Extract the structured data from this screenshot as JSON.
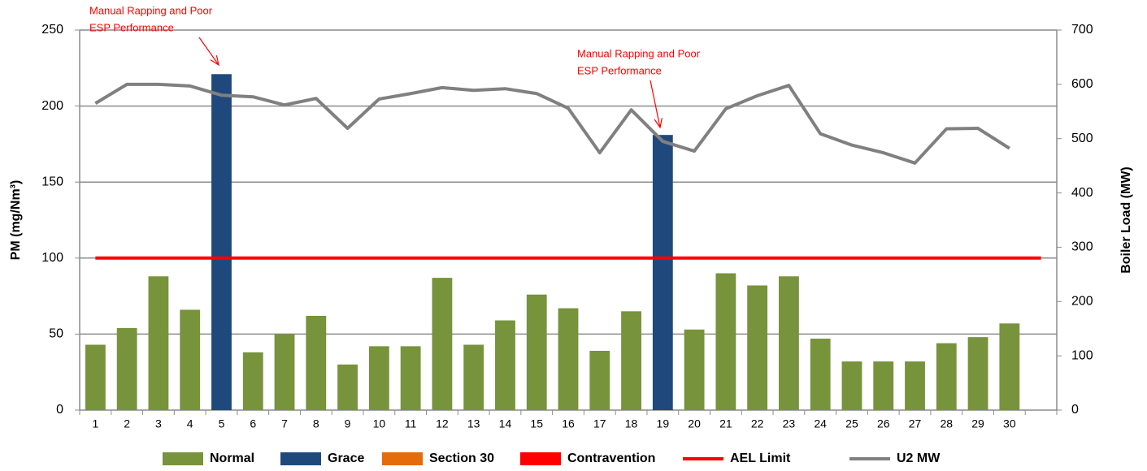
{
  "chart_data": {
    "type": "bar",
    "y_label": "PM (mg/Nm³)",
    "y2_label": "Boiler Load (MW)",
    "categories": [
      "1",
      "2",
      "3",
      "4",
      "5",
      "6",
      "7",
      "8",
      "9",
      "10",
      "11",
      "12",
      "13",
      "14",
      "15",
      "16",
      "17",
      "18",
      "19",
      "20",
      "21",
      "22",
      "23",
      "24",
      "25",
      "26",
      "27",
      "28",
      "29",
      "30",
      null
    ],
    "ylim": [
      0,
      250
    ],
    "yticks": [
      0,
      50,
      100,
      150,
      200,
      250
    ],
    "y2lim": [
      0,
      700
    ],
    "y2ticks": [
      0,
      100,
      200,
      300,
      400,
      500,
      600,
      700
    ],
    "grid": true,
    "legend": "bottom",
    "series": [
      {
        "name": "Normal",
        "type": "bar",
        "color": "#77933c",
        "values": [
          43,
          54,
          88,
          66,
          null,
          38,
          50,
          62,
          30,
          42,
          42,
          87,
          43,
          59,
          76,
          67,
          39,
          65,
          null,
          53,
          90,
          82,
          88,
          47,
          32,
          32,
          32,
          44,
          48,
          57,
          null
        ]
      },
      {
        "name": "Grace",
        "type": "bar",
        "color": "#1f497d",
        "values": [
          null,
          null,
          null,
          null,
          221,
          null,
          null,
          null,
          null,
          null,
          null,
          null,
          null,
          null,
          null,
          null,
          null,
          null,
          181,
          null,
          null,
          null,
          null,
          null,
          null,
          null,
          null,
          null,
          null,
          null,
          null
        ]
      },
      {
        "name": "Section 30",
        "type": "bar",
        "color": "#e46c0a",
        "values": [
          null,
          null,
          null,
          null,
          null,
          null,
          null,
          null,
          null,
          null,
          null,
          null,
          null,
          null,
          null,
          null,
          null,
          null,
          null,
          null,
          null,
          null,
          null,
          null,
          null,
          null,
          null,
          null,
          null,
          null,
          null
        ]
      },
      {
        "name": "Contravention",
        "type": "bar",
        "color": "#ff0000",
        "values": [
          null,
          null,
          null,
          null,
          null,
          null,
          null,
          null,
          null,
          null,
          null,
          null,
          null,
          null,
          null,
          null,
          null,
          null,
          null,
          null,
          null,
          null,
          null,
          null,
          null,
          null,
          null,
          null,
          null,
          null,
          null
        ]
      },
      {
        "name": "AEL Limit",
        "type": "line",
        "color": "#ff0000",
        "values": [
          100,
          100,
          100,
          100,
          100,
          100,
          100,
          100,
          100,
          100,
          100,
          100,
          100,
          100,
          100,
          100,
          100,
          100,
          100,
          100,
          100,
          100,
          100,
          100,
          100,
          100,
          100,
          100,
          100,
          100,
          100
        ]
      },
      {
        "name": "U2 MW",
        "type": "line",
        "axis": "y2",
        "color": "#808080",
        "values": [
          565,
          600,
          600,
          597,
          580,
          577,
          562,
          574,
          519,
          573,
          583,
          594,
          589,
          592,
          583,
          556,
          474,
          553,
          495,
          477,
          555,
          579,
          598,
          509,
          488,
          474,
          455,
          518,
          519,
          482,
          null
        ]
      }
    ],
    "annotations": [
      {
        "text": [
          "Manual Rapping and Poor",
          "ESP Performance"
        ]
      },
      {
        "text": [
          "Manual Rapping and Poor",
          "ESP Performance"
        ]
      }
    ]
  }
}
